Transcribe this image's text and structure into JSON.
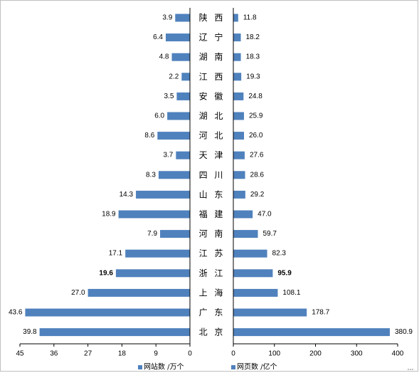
{
  "chart_data": {
    "type": "bar",
    "orientation": "horizontal-butterfly",
    "categories": [
      "陕 西",
      "辽 宁",
      "湖 南",
      "江 西",
      "安 徽",
      "湖 北",
      "河 北",
      "天 津",
      "四 川",
      "山 东",
      "福 建",
      "河 南",
      "江 苏",
      "浙 江",
      "上 海",
      "广 东",
      "北 京"
    ],
    "series": [
      {
        "name": "网站数 /万个",
        "side": "left",
        "color": "#4f81bd",
        "values": [
          3.9,
          6.4,
          4.8,
          2.2,
          3.5,
          6.0,
          8.6,
          3.7,
          8.3,
          14.3,
          18.9,
          7.9,
          17.1,
          19.6,
          27.0,
          43.6,
          39.8
        ],
        "labels": [
          "3.9",
          "6.4",
          "4.8",
          "2.2",
          "3.5",
          "6.0",
          "8.6",
          "3.7",
          "8.3",
          "14.3",
          "18.9",
          "7.9",
          "17.1",
          "19.6",
          "27.0",
          "43.6",
          "39.8"
        ],
        "bold_index": 13,
        "xlim": [
          45,
          0
        ],
        "ticks": [
          "45",
          "36",
          "27",
          "18",
          "9",
          "0"
        ]
      },
      {
        "name": "网页数 /亿个",
        "side": "right",
        "color": "#4f81bd",
        "values": [
          11.8,
          18.2,
          18.3,
          19.3,
          24.8,
          25.9,
          26.0,
          27.6,
          28.6,
          29.2,
          47.0,
          59.7,
          82.3,
          95.9,
          108.1,
          178.7,
          380.9
        ],
        "labels": [
          "11.8",
          "18.2",
          "18.3",
          "19.3",
          "24.8",
          "25.9",
          "26.0",
          "27.6",
          "28.6",
          "29.2",
          "47.0",
          "59.7",
          "82.3",
          "95.9",
          "108.1",
          "178.7",
          "380.9"
        ],
        "bold_index": 13,
        "xlim": [
          0,
          400
        ],
        "ticks": [
          "0",
          "100",
          "200",
          "300",
          "400"
        ]
      }
    ],
    "legend_position": "bottom"
  }
}
